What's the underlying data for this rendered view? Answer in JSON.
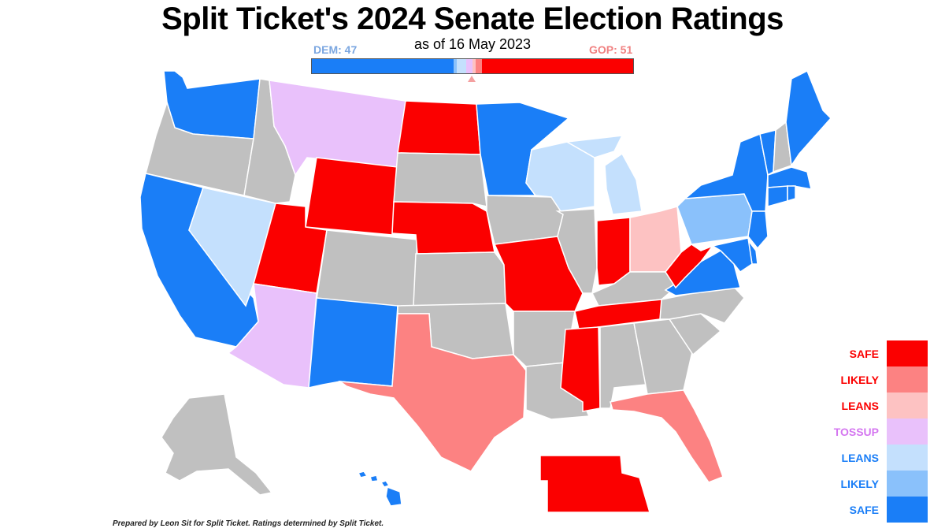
{
  "header": {
    "title": "Split Ticket's 2024 Senate Election Ratings",
    "subtitle": "as of 16 May 2023",
    "dem_total": "DEM: 47",
    "gop_total": "GOP: 51"
  },
  "colors": {
    "safe_d": "#1a7ef7",
    "likely_d": "#8ac1fb",
    "leans_d": "#c4e0fd",
    "tossup": "#e9c1fb",
    "leans_r": "#fdc2c2",
    "likely_r": "#fc8282",
    "safe_r": "#fb0000",
    "no_race": "#c0c0c0"
  },
  "seat_bar": [
    {
      "rating": "safe_d",
      "share": 0.44
    },
    {
      "rating": "likely_d",
      "share": 0.01
    },
    {
      "rating": "leans_d",
      "share": 0.03
    },
    {
      "rating": "tossup",
      "share": 0.02
    },
    {
      "rating": "leans_r",
      "share": 0.01
    },
    {
      "rating": "likely_r",
      "share": 0.02
    },
    {
      "rating": "safe_r",
      "share": 0.47
    }
  ],
  "legend": [
    {
      "label": "SAFE",
      "rating": "safe_r",
      "label_color": "#fb0000"
    },
    {
      "label": "LIKELY",
      "rating": "likely_r",
      "label_color": "#fb0000"
    },
    {
      "label": "LEANS",
      "rating": "leans_r",
      "label_color": "#fb0000"
    },
    {
      "label": "TOSSUP",
      "rating": "tossup",
      "label_color": "#d476f0"
    },
    {
      "label": "LEANS",
      "rating": "leans_d",
      "label_color": "#1a7ef7"
    },
    {
      "label": "LIKELY",
      "rating": "likely_d",
      "label_color": "#1a7ef7"
    },
    {
      "label": "SAFE",
      "rating": "safe_d",
      "label_color": "#1a7ef7"
    }
  ],
  "states": {
    "WA": "safe_d",
    "OR": "no_race",
    "CA": "safe_d",
    "NV": "leans_d",
    "ID": "no_race",
    "MT": "tossup",
    "WY": "safe_r",
    "UT": "safe_r",
    "AZ": "tossup",
    "CO": "no_race",
    "NM": "safe_d",
    "ND": "safe_r",
    "SD": "no_race",
    "NE": "safe_r",
    "KS": "no_race",
    "OK": "no_race",
    "TX": "likely_r",
    "MN": "safe_d",
    "IA": "no_race",
    "MO": "safe_r",
    "AR": "no_race",
    "LA": "no_race",
    "WI": "leans_d",
    "IL": "no_race",
    "MI": "leans_d",
    "IN": "safe_r",
    "OH": "leans_r",
    "KY": "no_race",
    "TN": "safe_r",
    "MS": "safe_r",
    "AL": "no_race",
    "GA": "no_race",
    "FL": "likely_r",
    "SC": "no_race",
    "NC": "no_race",
    "VA": "safe_d",
    "WV": "safe_r",
    "PA": "likely_d",
    "NY": "safe_d",
    "VT": "safe_d",
    "NH": "no_race",
    "ME": "safe_d",
    "MA": "safe_d",
    "CT": "safe_d",
    "RI": "safe_d",
    "NJ": "safe_d",
    "DE": "safe_d",
    "MD": "safe_d",
    "AK": "no_race",
    "HI": "safe_d",
    "NE_special": "safe_r"
  },
  "credit": "Prepared by Leon Sit for Split Ticket. Ratings determined by Split Ticket."
}
